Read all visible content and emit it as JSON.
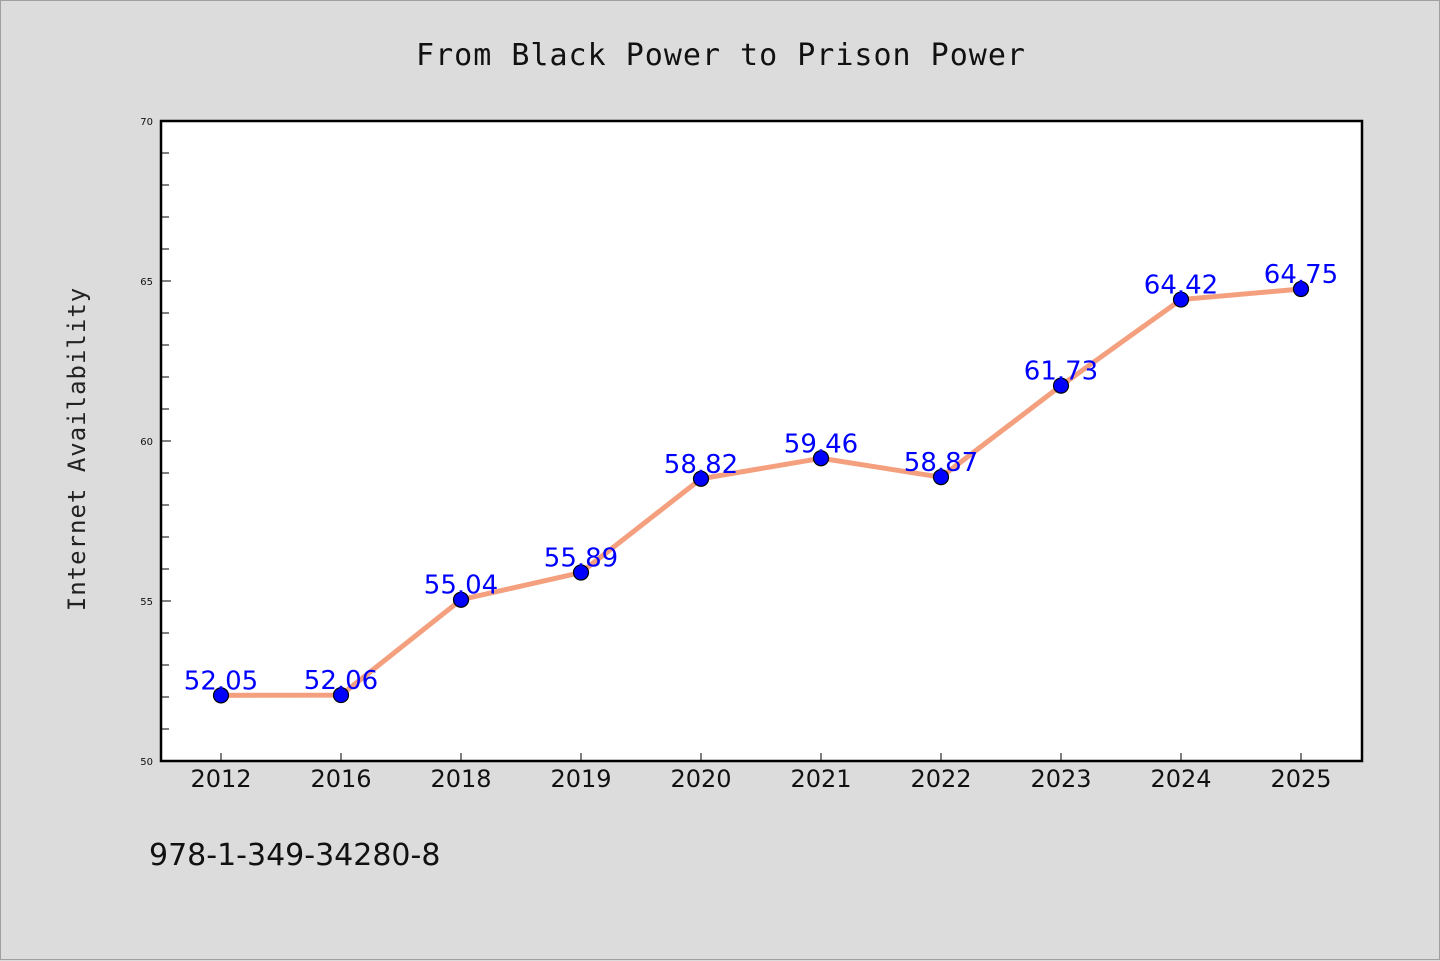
{
  "chart_data": {
    "type": "line",
    "title": "From Black Power to Prison Power",
    "xlabel": "",
    "ylabel": "Internet Availability",
    "categories": [
      "2012",
      "2016",
      "2018",
      "2019",
      "2020",
      "2021",
      "2022",
      "2023",
      "2024",
      "2025"
    ],
    "series": [
      {
        "values": [
          52.05,
          52.06,
          55.04,
          55.89,
          58.82,
          59.46,
          58.87,
          61.73,
          64.42,
          64.75
        ],
        "labels": [
          "52.05",
          "52.06",
          "55.04",
          "55.89",
          "58.82",
          "59.46",
          "58.87",
          "61.73",
          "64.42",
          "64.75"
        ]
      }
    ],
    "ylim": [
      50,
      70
    ],
    "yticks": [
      "50",
      "55",
      "60",
      "65",
      "70"
    ],
    "grid": false,
    "line_color": "#f4a07e",
    "marker_color": "#0000ff",
    "label_color": "#0000ff"
  },
  "footer": {
    "isbn": "978-1-349-34280-8"
  }
}
